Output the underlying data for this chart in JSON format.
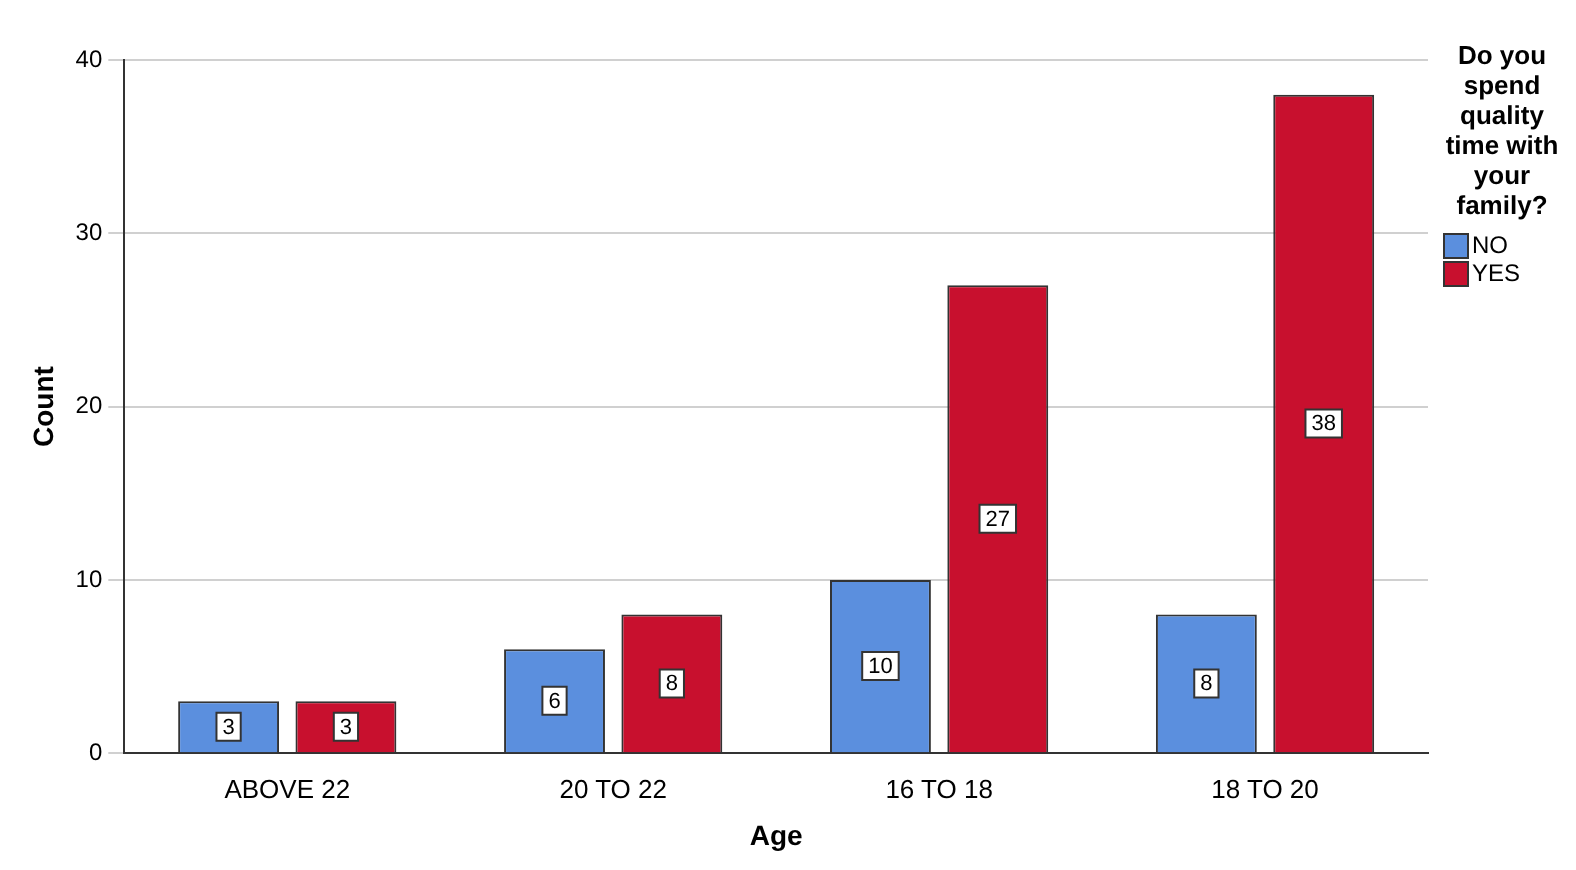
{
  "chart_data": {
    "type": "bar",
    "xlabel": "Age",
    "ylabel": "Count",
    "legend_title": "Do you spend quality time with your family?",
    "categories": [
      "ABOVE 22",
      "20 TO 22",
      "16 TO 18",
      "18 TO 20"
    ],
    "series": [
      {
        "name": "NO",
        "color": "#5b8fde",
        "values": [
          3,
          6,
          10,
          8
        ]
      },
      {
        "name": "YES",
        "color": "#c8102e",
        "values": [
          3,
          8,
          27,
          38
        ]
      }
    ],
    "ylim": [
      0,
      40
    ],
    "yticks": [
      0,
      10,
      20,
      30,
      40
    ],
    "grid": "y",
    "legend": "right",
    "data_labels": true
  }
}
